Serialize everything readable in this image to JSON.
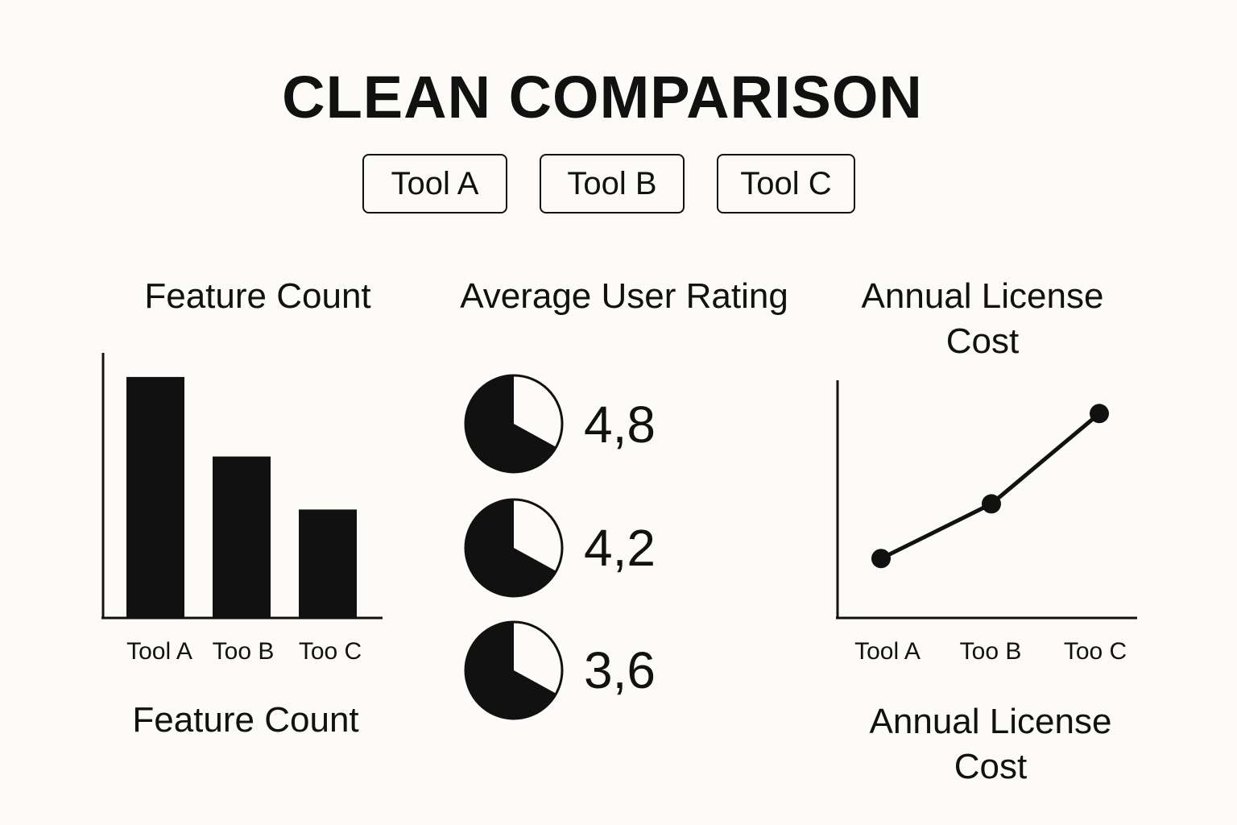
{
  "title": "CLEAN COMPARISON",
  "tools": [
    "Tool A",
    "Tool B",
    "Tool C"
  ],
  "feature_count_caption": "Feature Count",
  "license_cost_caption": "Annual License Cost",
  "chart_data": [
    {
      "type": "bar",
      "title": "Feature Count",
      "categories": [
        "Tool A",
        "Too B",
        "Too C"
      ],
      "values": [
        100,
        67,
        45
      ],
      "ylim": [
        0,
        110
      ],
      "grid": false
    },
    {
      "type": "pie",
      "title": "Average User Rating",
      "categories": [
        "Tool A",
        "Tool B",
        "Tool C"
      ],
      "values": [
        4.8,
        4.2,
        3.6
      ],
      "value_labels": [
        "4,8",
        "4,2",
        "3,6"
      ],
      "max": 5,
      "fill_fraction": 0.67
    },
    {
      "type": "line",
      "title": "Annual License Cost",
      "categories": [
        "Tool A",
        "Too B",
        "Too C"
      ],
      "values": [
        25,
        48,
        86
      ],
      "ylim": [
        0,
        100
      ],
      "grid": false
    }
  ]
}
